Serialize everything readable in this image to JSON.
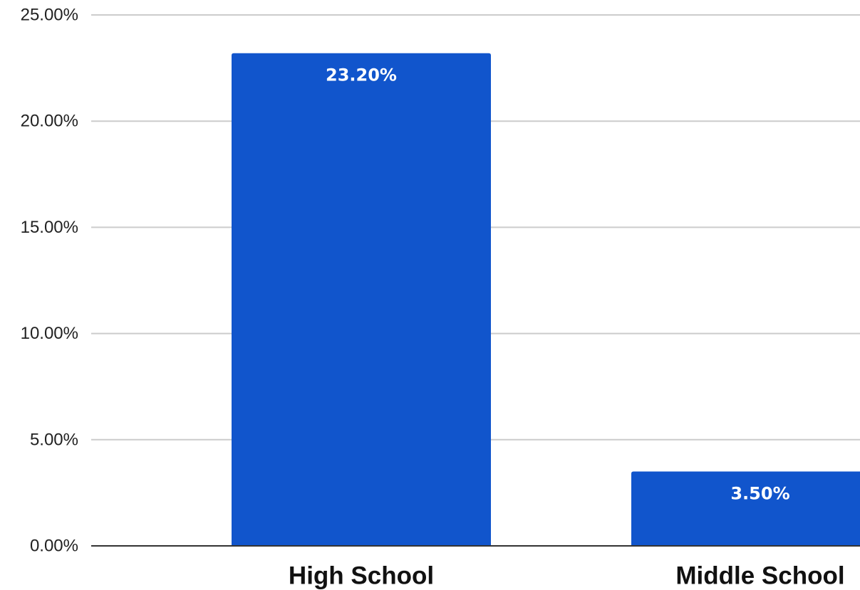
{
  "chart_data": {
    "type": "bar",
    "categories": [
      "High School",
      "Middle School"
    ],
    "values": [
      23.2,
      3.5
    ],
    "data_labels": [
      "23.20%",
      "3.50%"
    ],
    "ylim": [
      0,
      25
    ],
    "yticks": [
      {
        "value": 0,
        "label": "0.00%"
      },
      {
        "value": 5,
        "label": "5.00%"
      },
      {
        "value": 10,
        "label": "10.00%"
      },
      {
        "value": 15,
        "label": "15.00%"
      },
      {
        "value": 20,
        "label": "20.00%"
      },
      {
        "value": 25,
        "label": "25.00%"
      }
    ],
    "grid": true,
    "bar_color": "#1155cc",
    "title": "",
    "xlabel": "",
    "ylabel": ""
  }
}
